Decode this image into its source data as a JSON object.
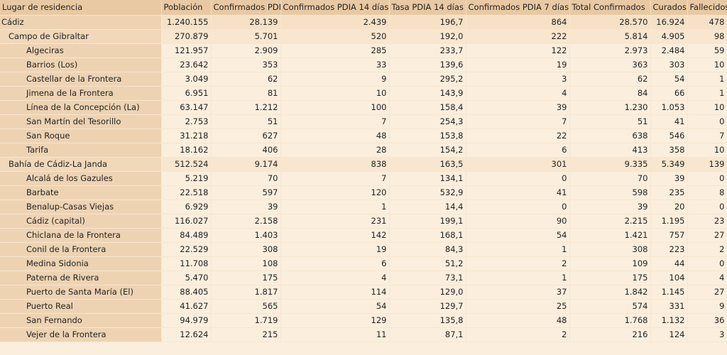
{
  "table": {
    "headers": [
      "Lugar de residencia",
      "Población",
      "Confirmados PDIA",
      "Confirmados PDIA 14 días",
      "Tasa PDIA 14 días",
      "Confirmados PDIA 7 días",
      "Total Confirmados",
      "Curados",
      "Fallecidos"
    ],
    "rows": [
      {
        "level": 0,
        "cells": [
          "Cádiz",
          "1.240.155",
          "28.139",
          "2.439",
          "196,7",
          "864",
          "28.570",
          "16.924",
          "478"
        ]
      },
      {
        "level": 1,
        "cells": [
          "Campo de Gibraltar",
          "270.879",
          "5.701",
          "520",
          "192,0",
          "222",
          "5.814",
          "4.905",
          "98"
        ]
      },
      {
        "level": 2,
        "cells": [
          "Algeciras",
          "121.957",
          "2.909",
          "285",
          "233,7",
          "122",
          "2.973",
          "2.484",
          "59"
        ]
      },
      {
        "level": 2,
        "cells": [
          "Barrios (Los)",
          "23.642",
          "353",
          "33",
          "139,6",
          "19",
          "363",
          "303",
          "10"
        ]
      },
      {
        "level": 2,
        "cells": [
          "Castellar de la Frontera",
          "3.049",
          "62",
          "9",
          "295,2",
          "3",
          "62",
          "54",
          "1"
        ]
      },
      {
        "level": 2,
        "cells": [
          "Jimena de la Frontera",
          "6.951",
          "81",
          "10",
          "143,9",
          "4",
          "84",
          "66",
          "1"
        ]
      },
      {
        "level": 2,
        "cells": [
          "Línea de la Concepción (La)",
          "63.147",
          "1.212",
          "100",
          "158,4",
          "39",
          "1.230",
          "1.053",
          "10"
        ]
      },
      {
        "level": 2,
        "cells": [
          "San Martín del Tesorillo",
          "2.753",
          "51",
          "7",
          "254,3",
          "7",
          "51",
          "41",
          "0"
        ]
      },
      {
        "level": 2,
        "cells": [
          "San Roque",
          "31.218",
          "627",
          "48",
          "153,8",
          "22",
          "638",
          "546",
          "7"
        ]
      },
      {
        "level": 2,
        "cells": [
          "Tarifa",
          "18.162",
          "406",
          "28",
          "154,2",
          "6",
          "413",
          "358",
          "10"
        ]
      },
      {
        "level": 1,
        "cells": [
          "Bahía de Cádiz-La Janda",
          "512.524",
          "9.174",
          "838",
          "163,5",
          "301",
          "9.335",
          "5.349",
          "139"
        ]
      },
      {
        "level": 2,
        "cells": [
          "Alcalá de los Gazules",
          "5.219",
          "70",
          "7",
          "134,1",
          "0",
          "70",
          "39",
          "0"
        ]
      },
      {
        "level": 2,
        "cells": [
          "Barbate",
          "22.518",
          "597",
          "120",
          "532,9",
          "41",
          "598",
          "235",
          "8"
        ]
      },
      {
        "level": 2,
        "cells": [
          "Benalup-Casas Viejas",
          "6.929",
          "39",
          "1",
          "14,4",
          "0",
          "39",
          "20",
          "0"
        ]
      },
      {
        "level": 2,
        "cells": [
          "Cádiz (capital)",
          "116.027",
          "2.158",
          "231",
          "199,1",
          "90",
          "2.215",
          "1.195",
          "23"
        ]
      },
      {
        "level": 2,
        "cells": [
          "Chiclana de la Frontera",
          "84.489",
          "1.403",
          "142",
          "168,1",
          "54",
          "1.421",
          "757",
          "27"
        ]
      },
      {
        "level": 2,
        "cells": [
          "Conil de la Frontera",
          "22.529",
          "308",
          "19",
          "84,3",
          "1",
          "308",
          "223",
          "2"
        ]
      },
      {
        "level": 2,
        "cells": [
          "Medina Sidonia",
          "11.708",
          "108",
          "6",
          "51,2",
          "2",
          "109",
          "44",
          "0"
        ]
      },
      {
        "level": 2,
        "cells": [
          "Paterna de Rivera",
          "5.470",
          "175",
          "4",
          "73,1",
          "1",
          "175",
          "104",
          "4"
        ]
      },
      {
        "level": 2,
        "cells": [
          "Puerto de Santa María (El)",
          "88.405",
          "1.817",
          "114",
          "129,0",
          "37",
          "1.842",
          "1.145",
          "27"
        ]
      },
      {
        "level": 2,
        "cells": [
          "Puerto Real",
          "41.627",
          "565",
          "54",
          "129,7",
          "25",
          "574",
          "331",
          "9"
        ]
      },
      {
        "level": 2,
        "cells": [
          "San Fernando",
          "94.979",
          "1.719",
          "129",
          "135,8",
          "48",
          "1.768",
          "1.132",
          "36"
        ]
      },
      {
        "level": 2,
        "cells": [
          "Vejer de la Frontera",
          "12.624",
          "215",
          "11",
          "87,1",
          "2",
          "216",
          "124",
          "3"
        ]
      }
    ]
  }
}
